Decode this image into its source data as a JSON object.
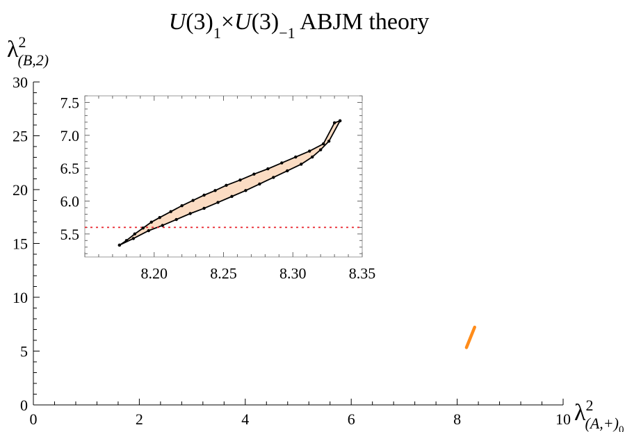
{
  "chart_data": [
    {
      "id": "main",
      "type": "area",
      "title": {
        "prefix": "U",
        "mid1": "(3)",
        "sub1": "1",
        "times": "×",
        "prefix2": "U",
        "mid2": "(3)",
        "sub2": "−1",
        "suffix": " ABJM theory"
      },
      "xlabel": {
        "base": "λ",
        "sup": "2",
        "sub": "(A,+)",
        "subsub": "0"
      },
      "ylabel": {
        "base": "λ",
        "sup": "2",
        "sub": "(B,2)"
      },
      "xlim": [
        0,
        10
      ],
      "ylim": [
        0,
        30
      ],
      "x_ticks": [
        0,
        2,
        4,
        6,
        8,
        10
      ],
      "x_tick_labels": [
        "0",
        "2",
        "4",
        "6",
        "8",
        "10"
      ],
      "y_ticks": [
        0,
        5,
        10,
        15,
        20,
        25,
        30
      ],
      "y_tick_labels": [
        "0",
        "5",
        "10",
        "15",
        "20",
        "25",
        "30"
      ],
      "grid": false,
      "colors": {
        "region": "#ff8c1a",
        "axes": "#000000"
      },
      "series": [
        {
          "region": [
            [
              8.175,
              5.33
            ],
            [
              8.33,
              7.22
            ]
          ]
        }
      ]
    },
    {
      "id": "inset",
      "type": "area",
      "xlim": [
        8.15,
        8.35
      ],
      "ylim": [
        5.15,
        7.6
      ],
      "x_ticks": [
        8.2,
        8.25,
        8.3,
        8.35
      ],
      "x_tick_labels": [
        "8.20",
        "8.25",
        "8.30",
        "8.35"
      ],
      "y_ticks": [
        5.5,
        6.0,
        6.5,
        7.0,
        7.5
      ],
      "y_tick_labels": [
        "5.5",
        "6.0",
        "6.5",
        "7.0",
        "7.5"
      ],
      "grid": false,
      "colors": {
        "fill": "#fbdcc3",
        "boundary": "#000000",
        "reference_line": "#e8202a"
      },
      "reference_line": {
        "y": 5.6,
        "style": "dotted"
      },
      "upper_boundary": [
        [
          8.175,
          5.33
        ],
        [
          8.18,
          5.4
        ],
        [
          8.186,
          5.5
        ],
        [
          8.192,
          5.59
        ],
        [
          8.198,
          5.68
        ],
        [
          8.204,
          5.75
        ],
        [
          8.212,
          5.84
        ],
        [
          8.22,
          5.93
        ],
        [
          8.228,
          6.01
        ],
        [
          8.236,
          6.09
        ],
        [
          8.244,
          6.16
        ],
        [
          8.252,
          6.24
        ],
        [
          8.262,
          6.32
        ],
        [
          8.272,
          6.41
        ],
        [
          8.282,
          6.49
        ],
        [
          8.292,
          6.58
        ],
        [
          8.302,
          6.67
        ],
        [
          8.312,
          6.76
        ],
        [
          8.322,
          6.87
        ],
        [
          8.33,
          7.19
        ],
        [
          8.334,
          7.22
        ]
      ],
      "lower_boundary": [
        [
          8.175,
          5.33
        ],
        [
          8.185,
          5.43
        ],
        [
          8.196,
          5.55
        ],
        [
          8.206,
          5.63
        ],
        [
          8.216,
          5.72
        ],
        [
          8.226,
          5.81
        ],
        [
          8.236,
          5.89
        ],
        [
          8.246,
          5.98
        ],
        [
          8.256,
          6.07
        ],
        [
          8.266,
          6.16
        ],
        [
          8.276,
          6.26
        ],
        [
          8.286,
          6.36
        ],
        [
          8.296,
          6.46
        ],
        [
          8.306,
          6.56
        ],
        [
          8.314,
          6.67
        ],
        [
          8.32,
          6.78
        ],
        [
          8.326,
          6.91
        ],
        [
          8.334,
          7.22
        ]
      ]
    }
  ]
}
